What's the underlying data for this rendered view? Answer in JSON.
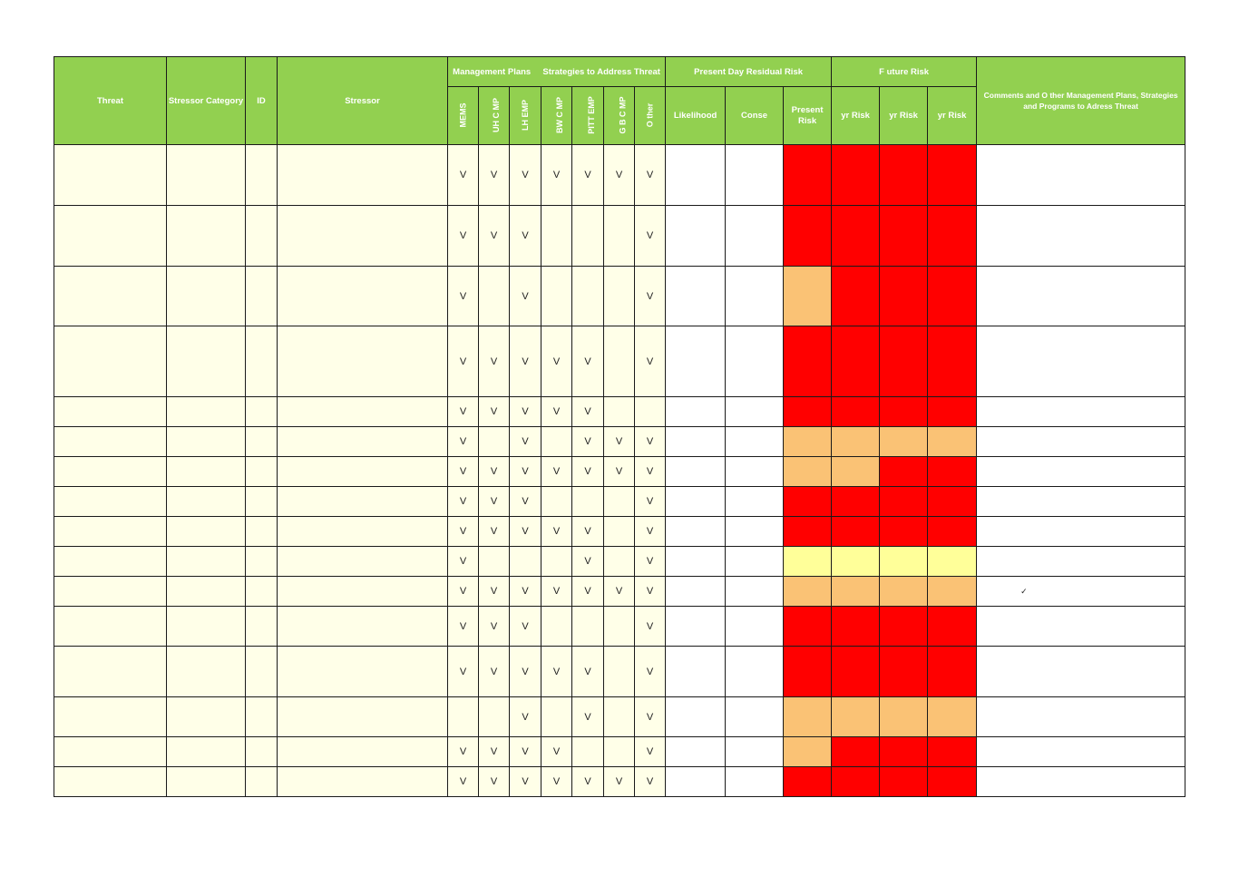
{
  "headers": {
    "threat": "Threat",
    "stressor_category": "Stressor Category",
    "id": "ID",
    "stressor": "Stressor",
    "management_group": "Management Plans     Strategies to Address Threat",
    "plans": [
      "MEMS",
      "UH C   MP",
      "LH EMP",
      "BW C   MP",
      "PITT EMP",
      "G B C   MP",
      "O ther"
    ],
    "present_group": "Present Day Residual Risk",
    "likelihood": "Likelihood",
    "consequence": "Conse",
    "present_risk": "Present Risk",
    "future_group": "F uture Risk",
    "future_cols": [
      "yr Risk",
      "yr Risk",
      "yr Risk"
    ],
    "comments": "Comments and O ther Management Plans, Strategies and Programs to Adress Threat"
  },
  "colors": {
    "header_green": "#92d050",
    "red": "#ff0000",
    "orange": "#fac275",
    "yellow": "#ffff99",
    "cream": "#ffffe8"
  },
  "rows": [
    {
      "marks": [
        "V",
        "V",
        "V",
        "V",
        "V",
        "V",
        "V"
      ],
      "risk": [
        "red",
        "red",
        "red",
        "red"
      ],
      "comment": ""
    },
    {
      "marks": [
        "V",
        "V",
        "V",
        "",
        "",
        "",
        "V"
      ],
      "risk": [
        "red",
        "red",
        "red",
        "red"
      ],
      "comment": ""
    },
    {
      "marks": [
        "V",
        "",
        "V",
        "",
        "",
        "",
        "V"
      ],
      "risk": [
        "orange",
        "red",
        "red",
        "red"
      ],
      "comment": ""
    },
    {
      "marks": [
        "V",
        "V",
        "V",
        "V",
        "V",
        "",
        "V"
      ],
      "risk": [
        "red",
        "red",
        "red",
        "red"
      ],
      "comment": ""
    },
    {
      "marks": [
        "V",
        "V",
        "V",
        "V",
        "V",
        "",
        ""
      ],
      "risk": [
        "red",
        "red",
        "red",
        "red"
      ],
      "comment": ""
    },
    {
      "marks": [
        "V",
        "",
        "V",
        "",
        "V",
        "V",
        "V"
      ],
      "risk": [
        "orange",
        "orange",
        "orange",
        "orange"
      ],
      "comment": ""
    },
    {
      "marks": [
        "V",
        "V",
        "V",
        "V",
        "V",
        "V",
        "V"
      ],
      "risk": [
        "orange",
        "orange",
        "red",
        "red"
      ],
      "comment": ""
    },
    {
      "marks": [
        "V",
        "V",
        "V",
        "",
        "",
        "",
        "V"
      ],
      "risk": [
        "red",
        "red",
        "red",
        "red"
      ],
      "comment": ""
    },
    {
      "marks": [
        "V",
        "V",
        "V",
        "V",
        "V",
        "",
        "V"
      ],
      "risk": [
        "red",
        "red",
        "red",
        "red"
      ],
      "comment": ""
    },
    {
      "marks": [
        "V",
        "",
        "",
        "",
        "V",
        "",
        "V"
      ],
      "risk": [
        "yellow",
        "yellow",
        "yellow",
        "yellow"
      ],
      "comment": ""
    },
    {
      "marks": [
        "V",
        "V",
        "V",
        "V",
        "V",
        "V",
        "V"
      ],
      "risk": [
        "orange",
        "orange",
        "orange",
        "orange"
      ],
      "comment": "✓"
    },
    {
      "marks": [
        "V",
        "V",
        "V",
        "",
        "",
        "",
        "V"
      ],
      "risk": [
        "red",
        "red",
        "red",
        "red"
      ],
      "comment": ""
    },
    {
      "marks": [
        "V",
        "V",
        "V",
        "V",
        "V",
        "",
        "V"
      ],
      "risk": [
        "red",
        "red",
        "red",
        "red"
      ],
      "comment": ""
    },
    {
      "marks": [
        "",
        "",
        "V",
        "",
        "V",
        "",
        "V"
      ],
      "risk": [
        "orange",
        "orange",
        "orange",
        "orange"
      ],
      "comment": ""
    },
    {
      "marks": [
        "V",
        "V",
        "V",
        "V",
        "",
        "",
        "V"
      ],
      "risk": [
        "orange",
        "red",
        "red",
        "red"
      ],
      "comment": ""
    },
    {
      "marks": [
        "V",
        "V",
        "V",
        "V",
        "V",
        "V",
        "V"
      ],
      "risk": [
        "red",
        "red",
        "red",
        "red"
      ],
      "comment": ""
    }
  ]
}
